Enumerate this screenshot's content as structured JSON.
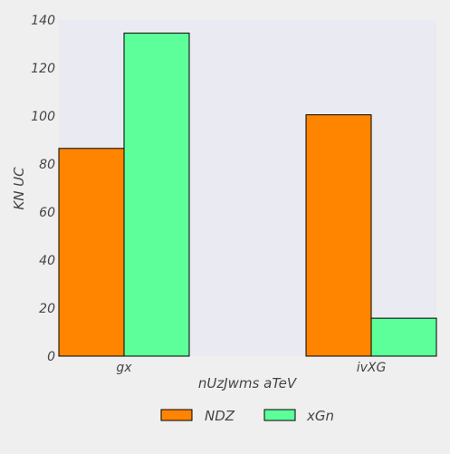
{
  "chart_data": {
    "type": "bar",
    "categories": [
      "gx",
      "ivXG"
    ],
    "series": [
      {
        "name": "NDZ",
        "values": [
          86.5,
          100.5
        ],
        "color": "#ff8400"
      },
      {
        "name": "xGn",
        "values": [
          134.5,
          15.8
        ],
        "color": "#5cff99"
      }
    ],
    "xlabel": "nUzJwms aTeV",
    "ylabel": "KN UC",
    "ylim": [
      0,
      140
    ],
    "yticks": [
      "0",
      "20",
      "40",
      "60",
      "80",
      "100",
      "120",
      "140"
    ],
    "grid": false,
    "legend_position": "bottom-center",
    "plot_background": "#eaeaf2",
    "bar_edge_color": "#000000"
  }
}
